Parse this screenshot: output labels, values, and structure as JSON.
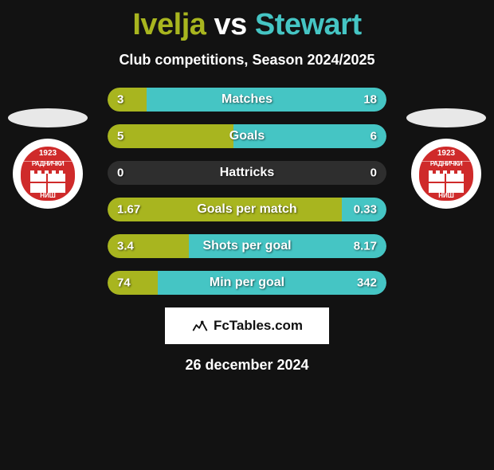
{
  "title_left": "Ivelja",
  "title_mid": "vs",
  "title_right": "Stewart",
  "title_color_left": "#a8b51f",
  "title_color_mid": "#ffffff",
  "title_color_right": "#45c5c4",
  "subtitle": "Club competitions, Season 2024/2025",
  "brand_text": "FcTables.com",
  "date_text": "26 december 2024",
  "track_bg": "#2e2e2e",
  "left_fill": "#a8b51f",
  "right_fill": "#45c5c4",
  "badge_year": "1923",
  "badge_script": "РАДНИЧКИ",
  "badge_city": "НИШ",
  "stats": [
    {
      "label": "Matches",
      "left_val": "3",
      "right_val": "18",
      "left_pct": 14,
      "right_pct": 86
    },
    {
      "label": "Goals",
      "left_val": "5",
      "right_val": "6",
      "left_pct": 45,
      "right_pct": 55
    },
    {
      "label": "Hattricks",
      "left_val": "0",
      "right_val": "0",
      "left_pct": 0,
      "right_pct": 0
    },
    {
      "label": "Goals per match",
      "left_val": "1.67",
      "right_val": "0.33",
      "left_pct": 84,
      "right_pct": 16
    },
    {
      "label": "Shots per goal",
      "left_val": "3.4",
      "right_val": "8.17",
      "left_pct": 29,
      "right_pct": 71
    },
    {
      "label": "Min per goal",
      "left_val": "74",
      "right_val": "342",
      "left_pct": 18,
      "right_pct": 82
    }
  ]
}
